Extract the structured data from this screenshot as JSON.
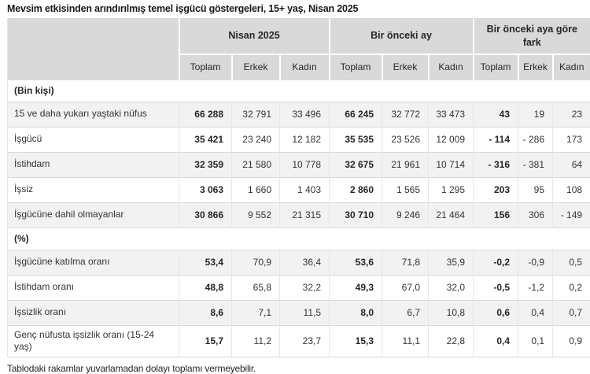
{
  "title": "Mevsim etkisinden arındırılmış temel işgücü göstergeleri, 15+ yaş, Nisan 2025",
  "footnote": "Tablodaki rakamlar yuvarlamadan dolayı toplamı vermeyebilir.",
  "colors": {
    "header_bg": "#d9d9d9",
    "row_stripe": "#f2f2f2",
    "row_border": "#d9d9d9",
    "text": "#333333"
  },
  "table": {
    "column_groups": [
      "Nisan 2025",
      "Bir önceki ay",
      "Bir önceki aya göre fark"
    ],
    "sub_headers": [
      "Toplam",
      "Erkek",
      "Kadın"
    ],
    "sections": [
      {
        "label": "(Bin kişi)",
        "rows": [
          {
            "label": "15 ve daha yukarı yaştaki nüfus",
            "values": [
              "66 288",
              "32 791",
              "33 496",
              "66 245",
              "32 772",
              "33 473",
              "43",
              "19",
              "23"
            ]
          },
          {
            "label": "İşgücü",
            "values": [
              "35 421",
              "23 240",
              "12 182",
              "35 535",
              "23 526",
              "12 009",
              "- 114",
              "- 286",
              "173"
            ]
          },
          {
            "label": "İstihdam",
            "values": [
              "32 359",
              "21 580",
              "10 778",
              "32 675",
              "21 961",
              "10 714",
              "- 316",
              "- 381",
              "64"
            ]
          },
          {
            "label": "İşsiz",
            "values": [
              "3 063",
              "1 660",
              "1 403",
              "2 860",
              "1 565",
              "1 295",
              "203",
              "95",
              "108"
            ]
          },
          {
            "label": "İşgücüne dahil olmayanlar",
            "values": [
              "30 866",
              "9 552",
              "21 315",
              "30 710",
              "9 246",
              "21 464",
              "156",
              "306",
              "- 149"
            ]
          }
        ]
      },
      {
        "label": "(%)",
        "rows": [
          {
            "label": "İşgücüne katılma oranı",
            "values": [
              "53,4",
              "70,9",
              "36,4",
              "53,6",
              "71,8",
              "35,9",
              "-0,2",
              "-0,9",
              "0,5"
            ]
          },
          {
            "label": "İstihdam oranı",
            "values": [
              "48,8",
              "65,8",
              "32,2",
              "49,3",
              "67,0",
              "32,0",
              "-0,5",
              "-1,2",
              "0,2"
            ]
          },
          {
            "label": "İşsizlik oranı",
            "values": [
              "8,6",
              "7,1",
              "11,5",
              "8,0",
              "6,7",
              "10,8",
              "0,6",
              "0,4",
              "0,7"
            ]
          },
          {
            "label": "Genç nüfusta işsizlik oranı (15-24 yaş)",
            "values": [
              "15,7",
              "11,2",
              "23,7",
              "15,3",
              "11,1",
              "22,8",
              "0,4",
              "0,1",
              "0,9"
            ]
          }
        ]
      }
    ]
  }
}
